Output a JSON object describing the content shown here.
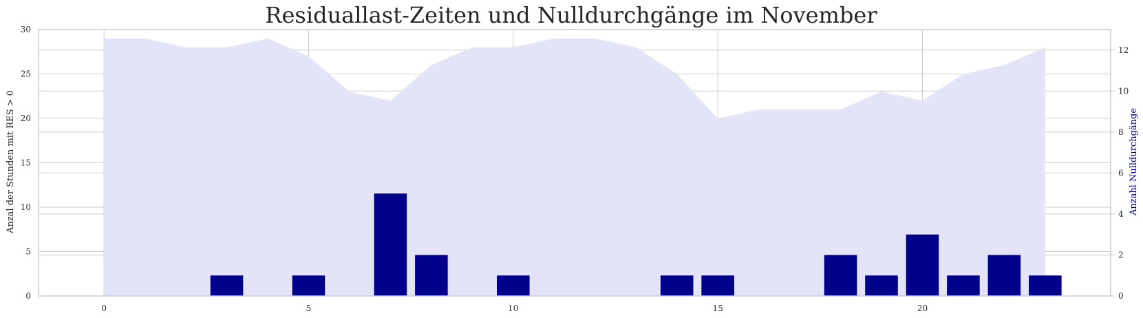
{
  "chart_data": {
    "type": "bar",
    "title": "Residuallast-Zeiten und Nulldurchgänge im November",
    "xlabel": "",
    "ylabel_left": "Anzal der Stunden mit RES > 0",
    "ylabel_right": "Anzahl Nulldurchgänge",
    "x_ticks": [
      "0",
      "5",
      "10",
      "15",
      "20"
    ],
    "y_left_ticks": [
      "0",
      "5",
      "10",
      "15",
      "20",
      "25",
      "30"
    ],
    "y_right_ticks": [
      "0",
      "2",
      "4",
      "6",
      "8",
      "10",
      "12"
    ],
    "xlim": [
      -1.6,
      24.6
    ],
    "ylim_left": [
      0,
      30
    ],
    "ylim_right": [
      0,
      13
    ],
    "grid": true,
    "area_series": {
      "axis": "left",
      "color": "#e4e4f8",
      "x": [
        0,
        1,
        2,
        3,
        4,
        5,
        6,
        7,
        8,
        9,
        10,
        11,
        12,
        13,
        14,
        15,
        16,
        17,
        18,
        19,
        20,
        21,
        22,
        23
      ],
      "values": [
        29,
        29,
        28,
        28,
        29,
        27,
        23,
        22,
        26,
        28,
        28,
        29,
        29,
        28,
        25,
        20,
        21,
        21,
        21,
        23,
        22,
        25,
        26,
        28
      ]
    },
    "bar_series": {
      "axis": "right",
      "color": "#00008b",
      "x": [
        0,
        1,
        2,
        3,
        4,
        5,
        6,
        7,
        8,
        9,
        10,
        11,
        12,
        13,
        14,
        15,
        16,
        17,
        18,
        19,
        20,
        21,
        22,
        23
      ],
      "values": [
        0,
        0,
        0,
        1,
        0,
        1,
        0,
        5,
        2,
        0,
        1,
        0,
        0,
        0,
        1,
        1,
        0,
        0,
        2,
        1,
        3,
        1,
        2,
        1
      ]
    },
    "colors": {
      "axis_text": "#262626",
      "right_label": "#00008b",
      "grid": "#cccccc",
      "spine": "#cccccc"
    }
  }
}
